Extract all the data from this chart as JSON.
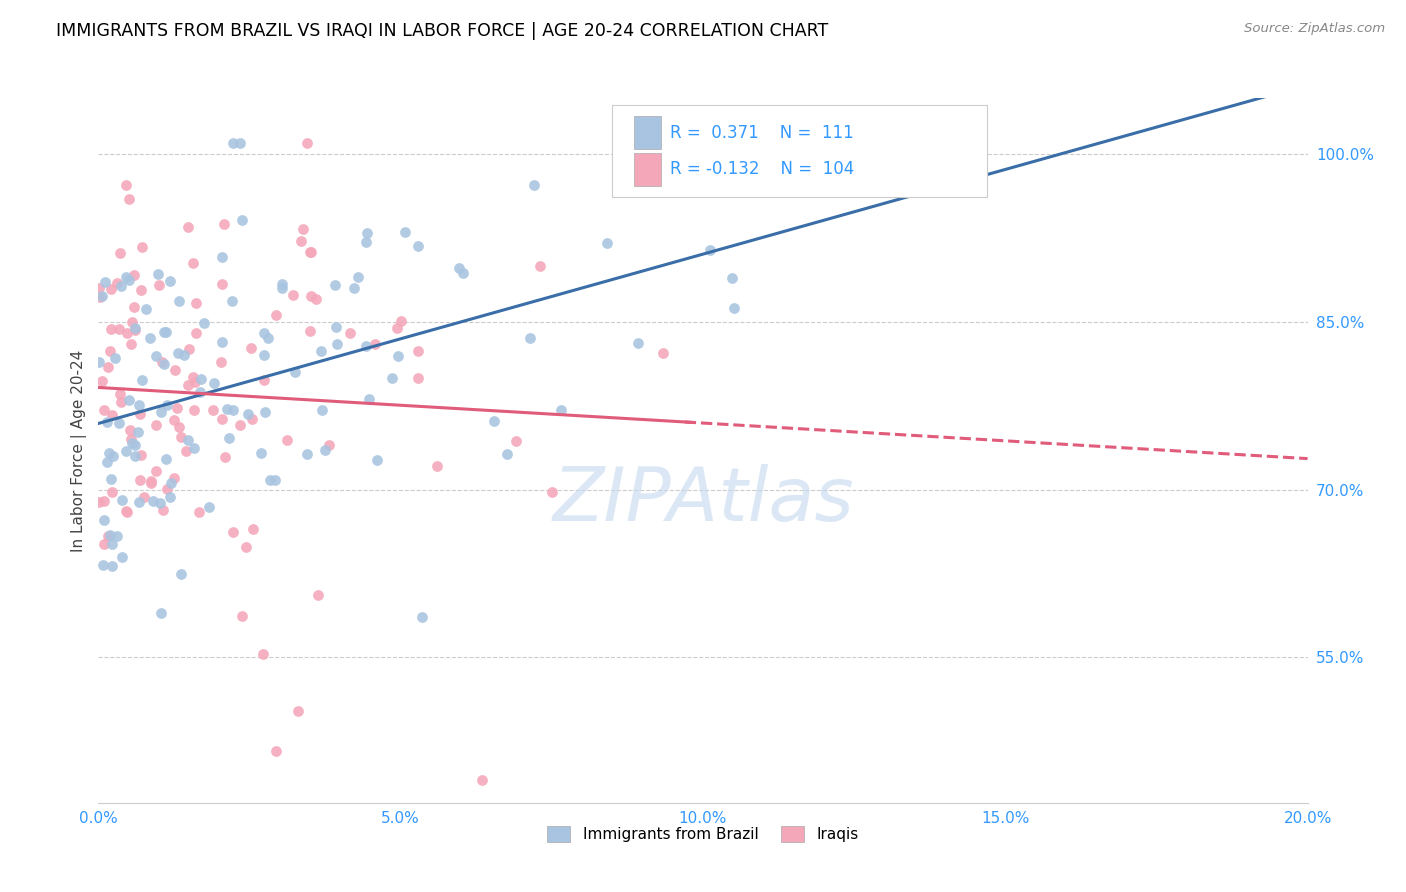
{
  "title": "IMMIGRANTS FROM BRAZIL VS IRAQI IN LABOR FORCE | AGE 20-24 CORRELATION CHART",
  "source": "Source: ZipAtlas.com",
  "ylabel": "In Labor Force | Age 20-24",
  "right_yticks": [
    "100.0%",
    "85.0%",
    "70.0%",
    "55.0%"
  ],
  "right_ytick_vals": [
    1.0,
    0.85,
    0.7,
    0.55
  ],
  "watermark": "ZIPAtlas",
  "brazil_R": 0.371,
  "brazil_N": 111,
  "iraq_R": -0.132,
  "iraq_N": 104,
  "brazil_color": "#a8c4e0",
  "iraq_color": "#f4a7b9",
  "brazil_line_color": "#3a6ea8",
  "iraq_line_color": "#e05c7a",
  "title_fontsize": 12.5,
  "axis_color": "#3399ff",
  "xmin": 0.0,
  "xmax": 0.2,
  "ymin": 0.42,
  "ymax": 1.05
}
